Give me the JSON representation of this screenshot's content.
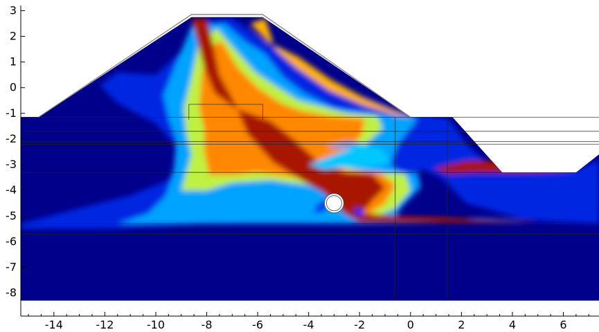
{
  "chart_data": {
    "type": "heatmap",
    "title": "",
    "xlabel": "",
    "ylabel": "",
    "xlim": [
      -15.3,
      7.4
    ],
    "ylim": [
      -8.9,
      3.2
    ],
    "x_ticks": [
      -14,
      -12,
      -10,
      -8,
      -6,
      -4,
      -2,
      0,
      2,
      4,
      6
    ],
    "y_ticks": [
      3,
      2,
      1,
      0,
      -1,
      -2,
      -3,
      -4,
      -5,
      -6,
      -7,
      -8
    ],
    "colormap": [
      "#00008b",
      "#0033ff",
      "#00c8ff",
      "#ffff00",
      "#ff6000",
      "#8b0000"
    ],
    "geometry": {
      "domain_bottom_y": -8.3,
      "foundation_top_y": -5.2,
      "ground_left_y": -1.15,
      "embankment_outline": [
        [
          -15.3,
          -1.15
        ],
        [
          -14.6,
          -1.15
        ],
        [
          -8.6,
          2.75
        ],
        [
          -5.8,
          2.75
        ],
        [
          0,
          -1.15
        ],
        [
          1.65,
          -1.15
        ],
        [
          3.6,
          -3.3
        ],
        [
          6.5,
          -3.3
        ],
        [
          7.4,
          -2.6
        ]
      ],
      "pipe_center": [
        -3.0,
        -4.5
      ],
      "pipe_radius": 0.3
    },
    "contours": [
      {
        "level": 0.15,
        "points": [
          [
            -15.3,
            -5.3
          ],
          [
            -13,
            -4.7
          ],
          [
            -11,
            -4.2
          ],
          [
            -9.5,
            -3.6
          ],
          [
            -9,
            -2.5
          ],
          [
            -10,
            -1.4
          ],
          [
            -11.5,
            -0.6
          ],
          [
            -12.2,
            0.1
          ],
          [
            -11.5,
            0.6
          ],
          [
            -10,
            0.5
          ],
          [
            -8.8,
            1.6
          ],
          [
            -8.3,
            2.6
          ],
          [
            -7,
            2.7
          ],
          [
            -6.3,
            2.2
          ],
          [
            -5,
            1.3
          ],
          [
            -3.5,
            0.5
          ],
          [
            -2.5,
            -0.1
          ],
          [
            -0.5,
            -0.9
          ],
          [
            1.5,
            -1.2
          ],
          [
            2.2,
            -2.2
          ],
          [
            3.2,
            -3.1
          ],
          [
            5,
            -3.3
          ],
          [
            6.8,
            -3.1
          ],
          [
            7.4,
            -2.8
          ],
          [
            7.4,
            -5.3
          ],
          [
            4.5,
            -5.15
          ],
          [
            2.2,
            -4.5
          ],
          [
            1.2,
            -3.5
          ],
          [
            0.5,
            -3.2
          ],
          [
            -0.4,
            -3.5
          ],
          [
            -1.0,
            -4.8
          ],
          [
            -2,
            -5.25
          ],
          [
            -8,
            -5.3
          ],
          [
            -12,
            -5.5
          ],
          [
            -15.3,
            -5.5
          ]
        ]
      },
      {
        "level": 0.35,
        "points": [
          [
            -11.5,
            -5.3
          ],
          [
            -10.3,
            -4.9
          ],
          [
            -9.6,
            -4.2
          ],
          [
            -9.3,
            -3.3
          ],
          [
            -9.2,
            -2.0
          ],
          [
            -9.5,
            -1.2
          ],
          [
            -9.7,
            -0.3
          ],
          [
            -9.3,
            0.7
          ],
          [
            -8.6,
            2.4
          ],
          [
            -7.3,
            2.5
          ],
          [
            -6.5,
            1.8
          ],
          [
            -5.7,
            1.3
          ],
          [
            -5.0,
            0.4
          ],
          [
            -4.2,
            -0.2
          ],
          [
            -3.0,
            -0.8
          ],
          [
            -1.5,
            -1.0
          ],
          [
            0.3,
            -1.2
          ],
          [
            -0.5,
            -2.2
          ],
          [
            -0.8,
            -3.0
          ],
          [
            -0.4,
            -3.3
          ],
          [
            0.3,
            -3.35
          ],
          [
            0.4,
            -3.9
          ],
          [
            -0.3,
            -4.6
          ],
          [
            -0.6,
            -5.0
          ],
          [
            0.5,
            -5.1
          ],
          [
            2.8,
            -5.1
          ],
          [
            4.5,
            -5.2
          ],
          [
            -2,
            -5.3
          ],
          [
            -6,
            -5.3
          ]
        ]
      },
      {
        "level": 0.55,
        "points": [
          [
            -9.0,
            -4.0
          ],
          [
            -8.6,
            -2.6
          ],
          [
            -8.8,
            -1.8
          ],
          [
            -8.9,
            -0.8
          ],
          [
            -8.6,
            0.4
          ],
          [
            -8.3,
            1.8
          ],
          [
            -7.6,
            2.3
          ],
          [
            -7.0,
            1.6
          ],
          [
            -6.1,
            0.6
          ],
          [
            -5.2,
            0.0
          ],
          [
            -4.4,
            -0.5
          ],
          [
            -2.5,
            -1.0
          ],
          [
            -1.3,
            -1.1
          ],
          [
            -1.1,
            -1.6
          ],
          [
            -2.0,
            -2.4
          ],
          [
            -2.6,
            -3.1
          ],
          [
            -1.5,
            -3.3
          ],
          [
            -0.2,
            -3.35
          ],
          [
            0.0,
            -4.0
          ],
          [
            -0.6,
            -4.7
          ],
          [
            -1.3,
            -5.0
          ],
          [
            0.5,
            -5.1
          ],
          [
            3.0,
            -5.15
          ],
          [
            -1.9,
            -5.1
          ],
          [
            -2.8,
            -4.3
          ],
          [
            -4.0,
            -3.8
          ],
          [
            -5.5,
            -3.6
          ],
          [
            -7.0,
            -3.7
          ],
          [
            -8.0,
            -4.0
          ]
        ]
      },
      {
        "level": 0.75,
        "points": [
          [
            -7.9,
            -3.4
          ],
          [
            -8.1,
            -2.5
          ],
          [
            -8.1,
            -1.6
          ],
          [
            -8.3,
            -0.8
          ],
          [
            -8.2,
            0.4
          ],
          [
            -8.0,
            1.6
          ],
          [
            -7.4,
            1.8
          ],
          [
            -6.8,
            0.8
          ],
          [
            -6.0,
            0.0
          ],
          [
            -5.1,
            -0.6
          ],
          [
            -4.3,
            -0.9
          ],
          [
            -3.2,
            -1.1
          ],
          [
            -1.8,
            -1.2
          ],
          [
            -1.9,
            -1.8
          ],
          [
            -2.6,
            -2.7
          ],
          [
            -2.6,
            -3.2
          ],
          [
            -1.2,
            -3.3
          ],
          [
            -0.6,
            -3.8
          ],
          [
            -1.0,
            -4.5
          ],
          [
            -1.6,
            -4.9
          ],
          [
            -0.3,
            -5.05
          ],
          [
            2.0,
            -5.1
          ],
          [
            -1.3,
            -5.15
          ],
          [
            -2.3,
            -4.7
          ],
          [
            -3.0,
            -3.8
          ],
          [
            -4.4,
            -3.5
          ],
          [
            -6.0,
            -3.3
          ],
          [
            -7.0,
            -3.4
          ]
        ]
      },
      {
        "level": 0.95,
        "points": [
          [
            -8.0,
            2.7
          ],
          [
            -8.6,
            2.7
          ],
          [
            -8.1,
            0.8
          ],
          [
            -7.7,
            -0.2
          ],
          [
            -6.9,
            -0.8
          ],
          [
            -5.5,
            -1.3
          ],
          [
            -4.6,
            -2.0
          ],
          [
            -3.6,
            -2.9
          ],
          [
            -2.6,
            -3.3
          ],
          [
            -1.5,
            -3.35
          ],
          [
            -1.0,
            -3.9
          ],
          [
            -1.5,
            -4.4
          ],
          [
            -1.9,
            -4.9
          ],
          [
            -0.5,
            -5.0
          ],
          [
            1.2,
            -5.05
          ],
          [
            3.0,
            -5.15
          ],
          [
            5.0,
            -5.25
          ],
          [
            0.0,
            -5.25
          ],
          [
            -2.0,
            -5.25
          ],
          [
            -2.6,
            -4.9
          ],
          [
            -3.4,
            -4.1
          ],
          [
            -4.3,
            -3.6
          ],
          [
            -5.4,
            -2.9
          ],
          [
            -6.4,
            -1.8
          ],
          [
            -6.9,
            -0.6
          ],
          [
            -7.5,
            0.5
          ],
          [
            -7.8,
            1.9
          ]
        ]
      },
      {
        "level": 0.7,
        "points": [
          [
            -5.7,
            2.7
          ],
          [
            -6.3,
            2.5
          ],
          [
            -5.6,
            1.8
          ],
          [
            -4.4,
            1.2
          ],
          [
            -3.1,
            0.3
          ],
          [
            -1.8,
            -0.4
          ],
          [
            -0.6,
            -0.9
          ],
          [
            0.1,
            -1.15
          ],
          [
            -0.6,
            -1.05
          ],
          [
            -1.8,
            -0.7
          ],
          [
            -3.2,
            -0.1
          ],
          [
            -4.5,
            0.8
          ],
          [
            -5.3,
            1.5
          ]
        ]
      },
      {
        "level": 0.95,
        "points": [
          [
            0.9,
            -3.15
          ],
          [
            2.2,
            -2.85
          ],
          [
            3.3,
            -2.85
          ],
          [
            5.0,
            -3.1
          ],
          [
            6.5,
            -3.25
          ],
          [
            4.5,
            -3.3
          ],
          [
            2.5,
            -3.3
          ],
          [
            1.5,
            -3.35
          ]
        ]
      },
      {
        "level": 0.4,
        "points": [
          [
            -4.0,
            -3.0
          ],
          [
            -3.0,
            -2.6
          ],
          [
            -2.0,
            -2.2
          ],
          [
            -1.1,
            -2.4
          ],
          [
            -0.8,
            -2.9
          ],
          [
            -1.6,
            -3.1
          ],
          [
            -2.5,
            -3.1
          ],
          [
            -3.4,
            -3.2
          ]
        ]
      },
      {
        "level": 0.35,
        "points": [
          [
            -3.3,
            -2.3
          ],
          [
            -2.5,
            -2.1
          ],
          [
            -1.8,
            -2.2
          ],
          [
            -2.2,
            -2.3
          ],
          [
            -2.9,
            -2.35
          ]
        ]
      },
      {
        "level": 0.18,
        "points": [
          [
            -3.7,
            -4.6
          ],
          [
            -3.3,
            -4.3
          ],
          [
            -3.3,
            -4.8
          ],
          [
            -3.8,
            -4.9
          ]
        ]
      },
      {
        "level": 0.18,
        "points": [
          [
            -2.2,
            -4.7
          ],
          [
            -1.9,
            -4.7
          ],
          [
            -1.8,
            -5.0
          ],
          [
            -2.2,
            -4.95
          ]
        ]
      }
    ],
    "lines": [
      {
        "points": [
          [
            -15.3,
            -1.15
          ],
          [
            7.4,
            -1.15
          ]
        ]
      },
      {
        "points": [
          [
            -15.3,
            -1.7
          ],
          [
            7.4,
            -1.7
          ]
        ]
      },
      {
        "points": [
          [
            -15.3,
            -2.1
          ],
          [
            7.4,
            -2.1
          ]
        ]
      },
      {
        "points": [
          [
            -15.3,
            -2.2
          ],
          [
            7.4,
            -2.2
          ]
        ]
      },
      {
        "points": [
          [
            -15.3,
            -3.3
          ],
          [
            3.6,
            -3.3
          ]
        ]
      },
      {
        "points": [
          [
            -15.3,
            -5.3
          ],
          [
            7.4,
            -5.3
          ]
        ]
      },
      {
        "points": [
          [
            -15.3,
            -5.7
          ],
          [
            7.4,
            -5.7
          ]
        ]
      },
      {
        "points": [
          [
            -0.6,
            -1.15
          ],
          [
            -0.6,
            -8.3
          ]
        ]
      },
      {
        "points": [
          [
            1.45,
            -1.15
          ],
          [
            1.45,
            -8.3
          ]
        ]
      },
      {
        "points": [
          [
            -8.7,
            -1.25
          ],
          [
            -8.7,
            -0.65
          ],
          [
            -5.8,
            -0.65
          ],
          [
            -5.8,
            -1.25
          ]
        ]
      },
      {
        "points": [
          [
            -14.6,
            -1.15
          ],
          [
            -8.6,
            2.85
          ],
          [
            -5.8,
            2.85
          ],
          [
            0.0,
            -1.15
          ]
        ]
      }
    ]
  }
}
